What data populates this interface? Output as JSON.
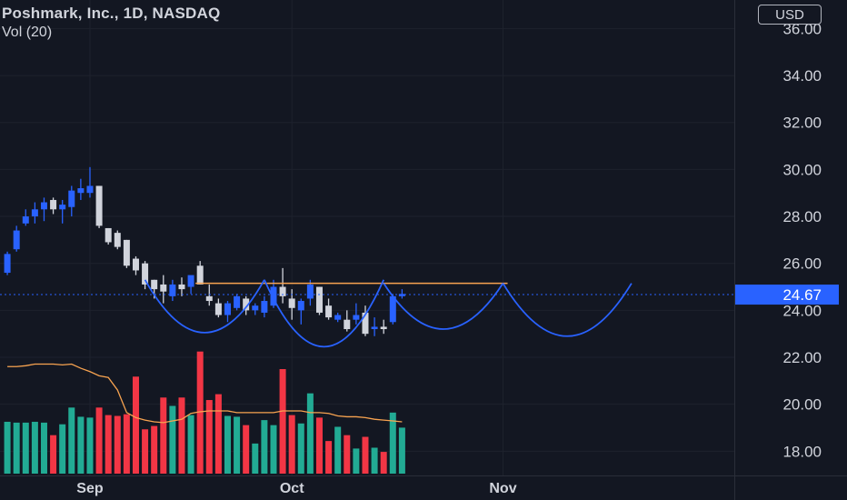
{
  "header": {
    "title": "Poshmark, Inc., 1D, NASDAQ",
    "volume_label": "Vol (20)"
  },
  "currency": "USD",
  "last_price_label": "24.67",
  "colors": {
    "background": "#131722",
    "up": "#2962ff",
    "down": "#d1d4dc",
    "vol_up": "#22ab94",
    "vol_down": "#f23645",
    "volume_ma": "#f7a350",
    "pattern": "#2962ff",
    "resistance": "#f7a350",
    "price_line": "#2962ff",
    "axis_text": "#d1d4dc",
    "grid": "#1e222d"
  },
  "chart_data": {
    "type": "candlestick",
    "title": "Poshmark, Inc., 1D, NASDAQ",
    "ylim": [
      17.2,
      37.1
    ],
    "y_ticks": [
      18,
      20,
      22,
      24,
      26,
      28,
      30,
      32,
      34,
      36
    ],
    "y_tick_labels": [
      "18.00",
      "20.00",
      "22.00",
      "24.00",
      "26.00",
      "28.00",
      "30.00",
      "32.00",
      "34.00",
      "36.00"
    ],
    "x_tick_labels": [
      {
        "label": "Sep",
        "index": 9
      },
      {
        "label": "Oct",
        "index": 31
      },
      {
        "label": "Nov",
        "index": 54
      }
    ],
    "x_range": [
      -0.8,
      79.2
    ],
    "last_price": 24.67,
    "series": [
      {
        "name": "Price",
        "ohlc": [
          [
            25.6,
            26.5,
            25.5,
            26.4
          ],
          [
            26.6,
            27.6,
            26.5,
            27.4
          ],
          [
            27.7,
            28.3,
            27.6,
            28.0
          ],
          [
            28.0,
            28.6,
            27.7,
            28.3
          ],
          [
            28.3,
            28.8,
            27.8,
            28.6
          ],
          [
            28.7,
            28.8,
            28.1,
            28.3
          ],
          [
            28.3,
            28.7,
            27.7,
            28.5
          ],
          [
            28.4,
            29.3,
            28.0,
            29.1
          ],
          [
            29.0,
            29.6,
            28.7,
            29.2
          ],
          [
            29.0,
            30.1,
            28.8,
            29.3
          ],
          [
            29.3,
            29.3,
            27.5,
            27.6
          ],
          [
            27.5,
            27.5,
            26.8,
            26.9
          ],
          [
            27.3,
            27.4,
            26.6,
            26.7
          ],
          [
            27.0,
            27.0,
            25.8,
            25.9
          ],
          [
            26.2,
            26.3,
            25.5,
            25.7
          ],
          [
            26.0,
            26.1,
            24.9,
            25.1
          ],
          [
            25.3,
            25.3,
            24.5,
            24.9
          ],
          [
            25.1,
            25.5,
            24.3,
            24.8
          ],
          [
            24.6,
            25.3,
            24.4,
            25.1
          ],
          [
            25.1,
            25.4,
            24.6,
            24.9
          ],
          [
            25.0,
            25.4,
            24.7,
            25.5
          ],
          [
            25.9,
            26.1,
            25.1,
            25.1
          ],
          [
            24.6,
            25.1,
            24.2,
            24.4
          ],
          [
            24.3,
            24.5,
            23.7,
            23.8
          ],
          [
            23.8,
            24.4,
            23.5,
            24.3
          ],
          [
            24.1,
            24.7,
            24.0,
            24.6
          ],
          [
            24.5,
            24.6,
            23.8,
            24.0
          ],
          [
            24.0,
            24.3,
            23.8,
            24.2
          ],
          [
            23.9,
            24.6,
            23.7,
            24.4
          ],
          [
            24.2,
            25.3,
            24.1,
            25.0
          ],
          [
            25.0,
            25.8,
            24.3,
            24.6
          ],
          [
            24.5,
            24.9,
            23.6,
            24.1
          ],
          [
            24.0,
            24.5,
            23.4,
            24.4
          ],
          [
            24.5,
            25.3,
            24.2,
            25.1
          ],
          [
            25.0,
            25.0,
            23.8,
            23.9
          ],
          [
            24.2,
            24.5,
            23.6,
            23.7
          ],
          [
            23.6,
            23.9,
            23.5,
            23.8
          ],
          [
            23.6,
            24.0,
            23.1,
            23.2
          ],
          [
            23.6,
            24.3,
            23.4,
            23.8
          ],
          [
            23.9,
            24.2,
            22.9,
            23.0
          ],
          [
            23.2,
            23.7,
            22.9,
            23.3
          ],
          [
            23.3,
            23.6,
            23.0,
            23.2
          ],
          [
            23.5,
            24.7,
            23.4,
            24.6
          ],
          [
            24.6,
            24.9,
            24.5,
            24.7
          ]
        ]
      },
      {
        "name": "Vol",
        "values": [
          0.62,
          0.61,
          0.61,
          0.62,
          0.61,
          0.46,
          0.59,
          0.79,
          0.68,
          0.67,
          0.79,
          0.7,
          0.69,
          0.71,
          1.16,
          0.53,
          0.57,
          0.91,
          0.81,
          0.91,
          0.7,
          1.46,
          0.88,
          0.95,
          0.69,
          0.68,
          0.58,
          0.36,
          0.64,
          0.58,
          1.25,
          0.7,
          0.6,
          0.96,
          0.67,
          0.39,
          0.56,
          0.46,
          0.3,
          0.44,
          0.31,
          0.26,
          0.73,
          0.55
        ]
      },
      {
        "name": "Vol MA",
        "values": [
          1.28,
          1.28,
          1.29,
          1.31,
          1.31,
          1.31,
          1.3,
          1.31,
          1.26,
          1.22,
          1.17,
          1.15,
          1.0,
          0.73,
          0.67,
          0.64,
          0.62,
          0.61,
          0.63,
          0.65,
          0.72,
          0.74,
          0.75,
          0.75,
          0.75,
          0.73,
          0.73,
          0.73,
          0.73,
          0.73,
          0.75,
          0.75,
          0.75,
          0.73,
          0.73,
          0.72,
          0.69,
          0.68,
          0.68,
          0.67,
          0.65,
          0.64,
          0.63,
          0.62
        ]
      }
    ],
    "volume_ylim": [
      0,
      2.0
    ],
    "resistance": {
      "price": 25.15,
      "x_start": 20.5,
      "x_end": 54.5
    },
    "cup_curves": [
      {
        "x": [
          15,
          21.5,
          28
        ],
        "y": [
          25.3,
          23.05,
          25.3
        ]
      },
      {
        "x": [
          28,
          34.5,
          41
        ],
        "y": [
          25.3,
          22.45,
          25.3
        ]
      },
      {
        "x": [
          41,
          47.5,
          54
        ],
        "y": [
          25.15,
          23.2,
          25.15
        ]
      },
      {
        "x": [
          54,
          61,
          68
        ],
        "y": [
          25.15,
          22.9,
          25.15
        ]
      }
    ]
  }
}
